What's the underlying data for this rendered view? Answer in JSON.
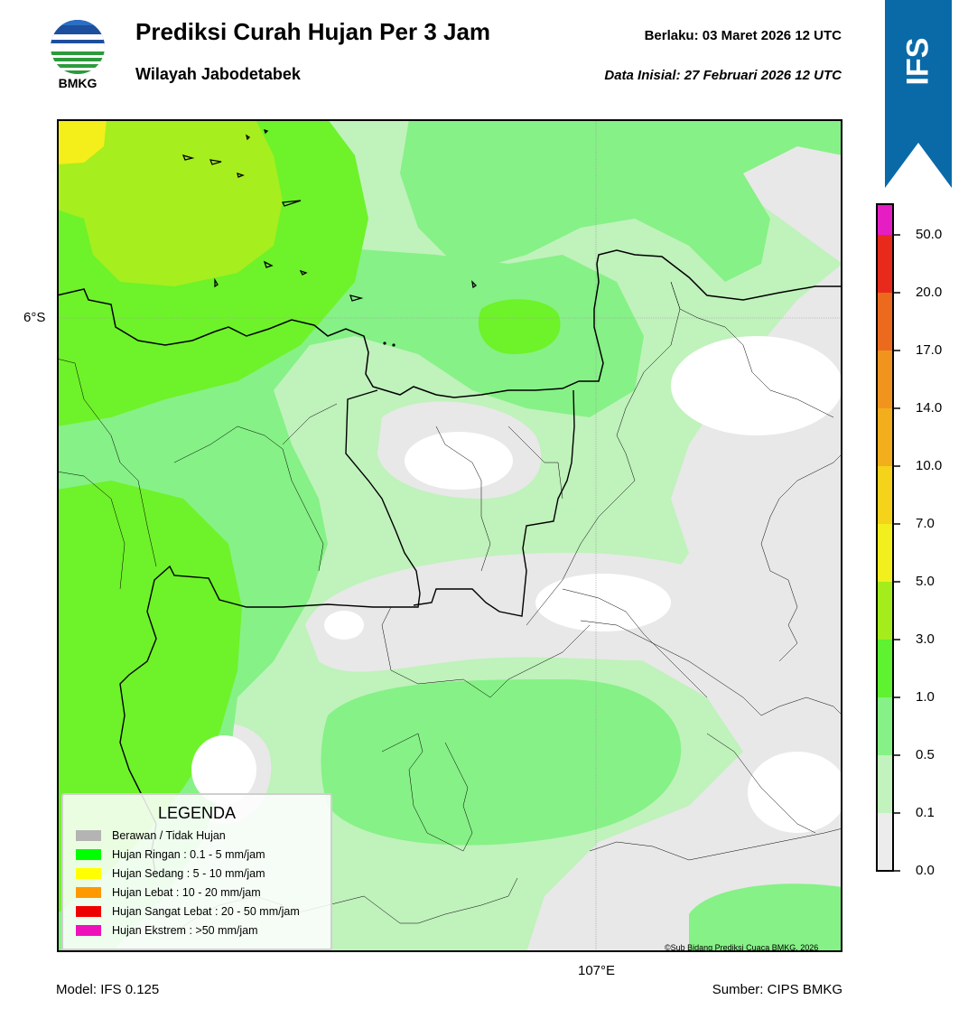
{
  "header": {
    "logo_text": "BMKG",
    "title": "Prediksi Curah Hujan Per 3 Jam",
    "subtitle": "Wilayah Jabodetabek",
    "valid_time": "Berlaku:  03 Maret 2026 12 UTC",
    "initial_time": "Data Inisial:  27 Februari 2026 12 UTC"
  },
  "ribbon": {
    "label": "IFS",
    "color": "#0a6aa8"
  },
  "map": {
    "lat_tick": "6°S",
    "lon_tick": "107°E",
    "copyright": "©Sub Bidang Prediksi Cuaca BMKG, 2026",
    "field_colors": {
      "none": "#e8e8e8",
      "very_light": "#c0f2bc",
      "light": "#86f186",
      "moderate": "#6ef22a",
      "moderate_high": "#a6ee1e",
      "high": "#f4ee1a",
      "dry": "#ffffff"
    }
  },
  "legend": {
    "title": "LEGENDA",
    "items": [
      {
        "label": "Berawan / Tidak Hujan",
        "color": "#b4b4b4"
      },
      {
        "label": "Hujan Ringan : 0.1 - 5 mm/jam",
        "color": "#00ff00"
      },
      {
        "label": "Hujan Sedang : 5 - 10 mm/jam",
        "color": "#ffff00"
      },
      {
        "label": "Hujan Lebat : 10 - 20 mm/jam",
        "color": "#ff9900"
      },
      {
        "label": "Hujan Sangat Lebat : 20 - 50 mm/jam",
        "color": "#ee0000"
      },
      {
        "label": "Hujan Ekstrem : >50 mm/jam",
        "color": "#ee11bb"
      }
    ]
  },
  "colorbar": {
    "ticks": [
      "0.0",
      "0.1",
      "0.5",
      "1.0",
      "3.0",
      "5.0",
      "7.0",
      "10.0",
      "14.0",
      "17.0",
      "20.0",
      "50.0"
    ],
    "bin_colors": [
      "#ececec",
      "#c2f2bd",
      "#86f186",
      "#5ef231",
      "#a4ec1c",
      "#f1ef1e",
      "#f4d31a",
      "#f2ae1c",
      "#f0941e",
      "#ec6a1e",
      "#e82a1c",
      "#e41ec2"
    ]
  },
  "footer": {
    "model": "Model: IFS 0.125",
    "source": "Sumber: CIPS BMKG"
  }
}
